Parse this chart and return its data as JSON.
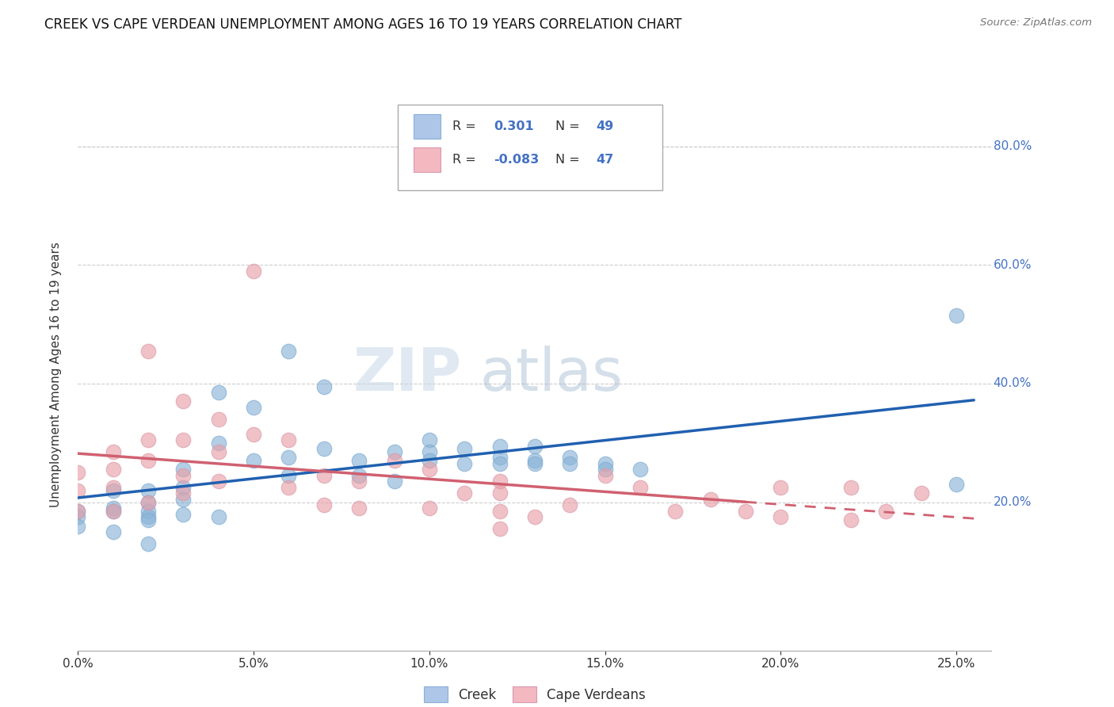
{
  "title": "CREEK VS CAPE VERDEAN UNEMPLOYMENT AMONG AGES 16 TO 19 YEARS CORRELATION CHART",
  "source": "Source: ZipAtlas.com",
  "xlabel_ticks": [
    "0.0%",
    "5.0%",
    "10.0%",
    "15.0%",
    "20.0%",
    "25.0%"
  ],
  "xlabel_vals": [
    0.0,
    0.05,
    0.1,
    0.15,
    0.2,
    0.25
  ],
  "ylabel_right_ticks": [
    "80.0%",
    "60.0%",
    "40.0%",
    "20.0%"
  ],
  "ylabel_right_vals": [
    0.8,
    0.6,
    0.4,
    0.2
  ],
  "ylabel_label": "Unemployment Among Ages 16 to 19 years",
  "creek_scatter_color": "#8ab4d8",
  "cape_scatter_color": "#e8a0a8",
  "trend_creek_color": "#2060b0",
  "trend_cape_color": "#d06070",
  "watermark_zip": "ZIP",
  "watermark_atlas": "atlas",
  "xlim": [
    0.0,
    0.26
  ],
  "ylim": [
    -0.05,
    0.88
  ],
  "creek_x": [
    0.0,
    0.0,
    0.0,
    0.01,
    0.01,
    0.01,
    0.01,
    0.02,
    0.02,
    0.02,
    0.02,
    0.02,
    0.02,
    0.03,
    0.03,
    0.03,
    0.03,
    0.04,
    0.04,
    0.04,
    0.05,
    0.05,
    0.06,
    0.06,
    0.06,
    0.07,
    0.07,
    0.08,
    0.08,
    0.09,
    0.09,
    0.1,
    0.1,
    0.1,
    0.11,
    0.11,
    0.12,
    0.12,
    0.12,
    0.13,
    0.13,
    0.13,
    0.14,
    0.14,
    0.15,
    0.15,
    0.16,
    0.25,
    0.25
  ],
  "creek_y": [
    0.185,
    0.175,
    0.16,
    0.22,
    0.19,
    0.185,
    0.15,
    0.22,
    0.2,
    0.185,
    0.175,
    0.17,
    0.13,
    0.255,
    0.225,
    0.205,
    0.18,
    0.385,
    0.3,
    0.175,
    0.36,
    0.27,
    0.455,
    0.275,
    0.245,
    0.395,
    0.29,
    0.27,
    0.245,
    0.285,
    0.235,
    0.305,
    0.285,
    0.27,
    0.29,
    0.265,
    0.295,
    0.275,
    0.265,
    0.295,
    0.27,
    0.265,
    0.275,
    0.265,
    0.265,
    0.255,
    0.255,
    0.515,
    0.23
  ],
  "cape_x": [
    0.0,
    0.0,
    0.0,
    0.01,
    0.01,
    0.01,
    0.01,
    0.02,
    0.02,
    0.02,
    0.02,
    0.03,
    0.03,
    0.03,
    0.03,
    0.04,
    0.04,
    0.04,
    0.05,
    0.05,
    0.06,
    0.06,
    0.07,
    0.07,
    0.08,
    0.08,
    0.09,
    0.1,
    0.1,
    0.11,
    0.12,
    0.12,
    0.12,
    0.12,
    0.13,
    0.14,
    0.15,
    0.16,
    0.17,
    0.18,
    0.19,
    0.2,
    0.2,
    0.22,
    0.22,
    0.23,
    0.24
  ],
  "cape_y": [
    0.25,
    0.22,
    0.185,
    0.285,
    0.255,
    0.225,
    0.185,
    0.455,
    0.305,
    0.27,
    0.2,
    0.37,
    0.305,
    0.245,
    0.215,
    0.34,
    0.285,
    0.235,
    0.59,
    0.315,
    0.305,
    0.225,
    0.245,
    0.195,
    0.235,
    0.19,
    0.27,
    0.255,
    0.19,
    0.215,
    0.235,
    0.215,
    0.185,
    0.155,
    0.175,
    0.195,
    0.245,
    0.225,
    0.185,
    0.205,
    0.185,
    0.225,
    0.175,
    0.225,
    0.17,
    0.185,
    0.215
  ],
  "background_color": "#ffffff",
  "grid_color": "#c8c8c8",
  "right_label_color": "#4472c4",
  "legend_box_color": "#aec6e8",
  "legend_pink_color": "#f4b8c1"
}
